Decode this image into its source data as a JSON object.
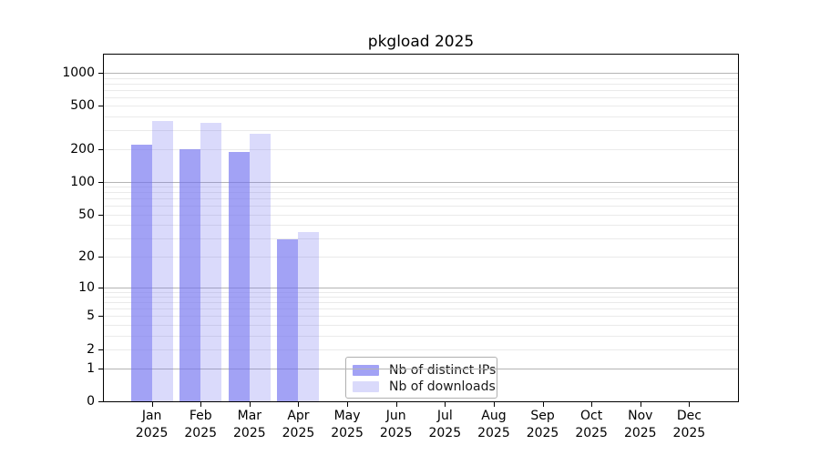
{
  "figure": {
    "title": "pkgload 2025"
  },
  "chart_data": {
    "type": "bar",
    "title": "pkgload 2025",
    "categories": [
      "Jan 2025",
      "Feb 2025",
      "Mar 2025",
      "Apr 2025",
      "May 2025",
      "Jun 2025",
      "Jul 2025",
      "Aug 2025",
      "Sep 2025",
      "Oct 2025",
      "Nov 2025",
      "Dec 2025"
    ],
    "x_ticklabels": [
      [
        "Jan",
        "2025"
      ],
      [
        "Feb",
        "2025"
      ],
      [
        "Mar",
        "2025"
      ],
      [
        "Apr",
        "2025"
      ],
      [
        "May",
        "2025"
      ],
      [
        "Jun",
        "2025"
      ],
      [
        "Jul",
        "2025"
      ],
      [
        "Aug",
        "2025"
      ],
      [
        "Sep",
        "2025"
      ],
      [
        "Oct",
        "2025"
      ],
      [
        "Nov",
        "2025"
      ],
      [
        "Dec",
        "2025"
      ]
    ],
    "series": [
      {
        "name": "Nb of distinct IPs",
        "color": "rgba(112,112,240,0.65)",
        "values": [
          220,
          200,
          190,
          29,
          null,
          null,
          null,
          null,
          null,
          null,
          null,
          null
        ]
      },
      {
        "name": "Nb of downloads",
        "color": "rgba(112,112,240,0.26)",
        "values": [
          360,
          350,
          280,
          34,
          null,
          null,
          null,
          null,
          null,
          null,
          null,
          null
        ]
      }
    ],
    "xlabel": "",
    "ylabel": "",
    "yscale": "log1p",
    "ylim": [
      0,
      1500
    ],
    "yticks": [
      0,
      1,
      2,
      5,
      10,
      20,
      50,
      100,
      200,
      500,
      1000
    ],
    "grid": {
      "on": true,
      "major": [
        1,
        10,
        100,
        1000
      ],
      "minor": [
        2,
        3,
        4,
        5,
        6,
        7,
        8,
        9,
        20,
        30,
        40,
        50,
        60,
        70,
        80,
        90,
        200,
        300,
        400,
        500,
        600,
        700,
        800,
        900
      ]
    },
    "legend": {
      "position": "lower-center",
      "border_color": "#b0b0b0"
    },
    "colors": {
      "bar_base": "#7070f0",
      "grid_major": "#b4b4b4",
      "grid_minor": "#eaeaea",
      "spine": "#000000"
    }
  }
}
